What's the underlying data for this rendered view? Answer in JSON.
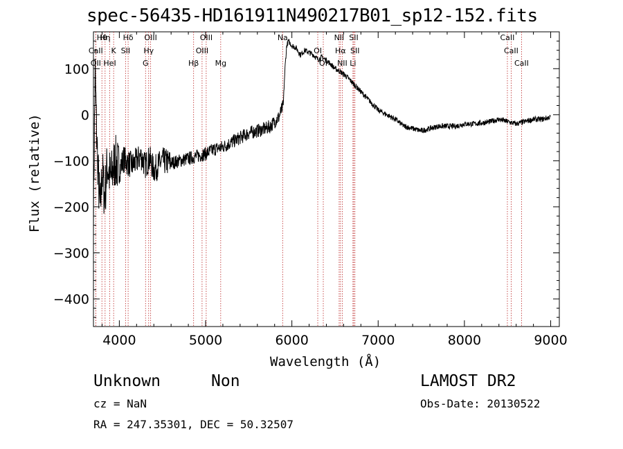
{
  "chart_data": {
    "type": "line",
    "title": "spec-56435-HD161911N490217B01_sp12-152.fits",
    "xlabel": "Wavelength (Å)",
    "ylabel": "Flux (relative)",
    "xlim": [
      3700,
      9100
    ],
    "ylim": [
      -460,
      180
    ],
    "xticks": [
      4000,
      5000,
      6000,
      7000,
      8000,
      9000
    ],
    "yticks": [
      -400,
      -300,
      -200,
      -100,
      0,
      100
    ],
    "grid": false,
    "series": [
      {
        "x": [
          3700,
          3720,
          3740,
          3760,
          3780,
          3800,
          3830,
          3860,
          3900,
          3950,
          4000,
          4050,
          4100,
          4150,
          4200,
          4250,
          4300,
          4350,
          4400,
          4450,
          4500,
          4600,
          4700,
          4800,
          4900,
          5000,
          5100,
          5200,
          5300,
          5400,
          5500,
          5600,
          5700,
          5750,
          5800,
          5850,
          5880,
          5900,
          5910,
          5920,
          5940,
          5960,
          5980,
          6000,
          6050,
          6100,
          6150,
          6200,
          6250,
          6300,
          6350,
          6400,
          6450,
          6500,
          6550,
          6600,
          6650,
          6700,
          6750,
          6800,
          6850,
          6900,
          6950,
          7000,
          7100,
          7200,
          7300,
          7400,
          7500,
          7600,
          7700,
          7800,
          7900,
          8000,
          8100,
          8200,
          8300,
          8400,
          8500,
          8600,
          8700,
          8800,
          8900,
          9000
        ],
        "y": [
          -200,
          90,
          -60,
          -150,
          -210,
          -120,
          -180,
          -110,
          -140,
          -100,
          -120,
          -95,
          -105,
          -110,
          -100,
          -90,
          -110,
          -95,
          -120,
          -110,
          -100,
          -105,
          -100,
          -95,
          -90,
          -85,
          -75,
          -70,
          -60,
          -50,
          -40,
          -35,
          -30,
          -25,
          -15,
          -5,
          10,
          20,
          60,
          100,
          150,
          160,
          155,
          150,
          145,
          130,
          140,
          135,
          130,
          120,
          125,
          118,
          110,
          100,
          95,
          88,
          80,
          70,
          60,
          50,
          40,
          30,
          20,
          10,
          0,
          -10,
          -25,
          -30,
          -35,
          -30,
          -25,
          -25,
          -25,
          -20,
          -20,
          -18,
          -15,
          -10,
          -15,
          -20,
          -15,
          -10,
          -10,
          -5
        ]
      }
    ],
    "lines": [
      {
        "label": "Hθ",
        "x": 3798
      },
      {
        "label": "CaII",
        "x": 3727
      },
      {
        "label": "OII",
        "x": 3727
      },
      {
        "label": "Hη",
        "x": 3835
      },
      {
        "label": "K",
        "x": 3934
      },
      {
        "label": "HeI",
        "x": 3889
      },
      {
        "label": "Hδ",
        "x": 4102
      },
      {
        "label": "SII",
        "x": 4072
      },
      {
        "label": "G",
        "x": 4304
      },
      {
        "label": "OIII",
        "x": 4363
      },
      {
        "label": "Hγ",
        "x": 4340
      },
      {
        "label": "Hβ",
        "x": 4861
      },
      {
        "label": "OIII",
        "x": 5007
      },
      {
        "label": "OIII",
        "x": 4959
      },
      {
        "label": "Mg",
        "x": 5175
      },
      {
        "label": "Na",
        "x": 5893
      },
      {
        "label": "OI",
        "x": 6300
      },
      {
        "label": "OI",
        "x": 6364
      },
      {
        "label": "NII",
        "x": 6548
      },
      {
        "label": "Hα",
        "x": 6563
      },
      {
        "label": "NII",
        "x": 6584
      },
      {
        "label": "SII",
        "x": 6717
      },
      {
        "label": "SII",
        "x": 6731
      },
      {
        "label": "Li",
        "x": 6708
      },
      {
        "label": "CaII",
        "x": 8498
      },
      {
        "label": "CaII",
        "x": 8542
      },
      {
        "label": "CaII",
        "x": 8662
      }
    ]
  },
  "footer": {
    "class": "Unknown",
    "subclass": "Non",
    "survey": "LAMOST DR2",
    "cz": "cz = NaN",
    "obs_date": "Obs-Date: 20130522",
    "coords": "RA = 247.35301, DEC =  50.32507"
  }
}
